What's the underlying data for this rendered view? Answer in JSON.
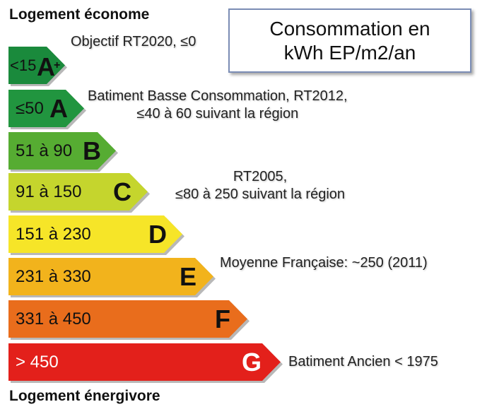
{
  "headings": {
    "top": "Logement économe",
    "bottom": "Logement énergivore"
  },
  "title_box": {
    "line1": "Consommation en",
    "line2": "kWh EP/m2/an"
  },
  "classes": [
    {
      "range": "<15",
      "letter": "A",
      "suffix": "+",
      "color": "#1a8a3c",
      "range_color": "#111",
      "letter_color": "#111"
    },
    {
      "range": "≤50",
      "letter": "A",
      "suffix": "",
      "color": "#21953f",
      "range_color": "#111",
      "letter_color": "#111"
    },
    {
      "range": "51 à 90",
      "letter": "B",
      "suffix": "",
      "color": "#56ac32",
      "range_color": "#111",
      "letter_color": "#111"
    },
    {
      "range": "91 à 150",
      "letter": "C",
      "suffix": "",
      "color": "#c5d52d",
      "range_color": "#111",
      "letter_color": "#111"
    },
    {
      "range": "151 à 230",
      "letter": "D",
      "suffix": "",
      "color": "#f6e528",
      "range_color": "#111",
      "letter_color": "#111"
    },
    {
      "range": "231 à 330",
      "letter": "E",
      "suffix": "",
      "color": "#f2b31c",
      "range_color": "#111",
      "letter_color": "#111"
    },
    {
      "range": "331 à 450",
      "letter": "F",
      "suffix": "",
      "color": "#e96d1c",
      "range_color": "#111",
      "letter_color": "#111"
    },
    {
      "range": "> 450",
      "letter": "G",
      "suffix": "",
      "color": "#e3201b",
      "range_color": "#ffffff",
      "letter_color": "#ffffff"
    }
  ],
  "notes": {
    "rt2020": "Objectif RT2020, ≤0",
    "bbc_line1": "Batiment Basse Consommation, RT2012,",
    "bbc_line2": "≤40 à 60 suivant la région",
    "rt2005_line1": "RT2005,",
    "rt2005_line2": "≤80 à 250 suivant la région",
    "moyenne": "Moyenne Française: ~250 (2011)",
    "ancien": "Batiment Ancien < 1975"
  }
}
